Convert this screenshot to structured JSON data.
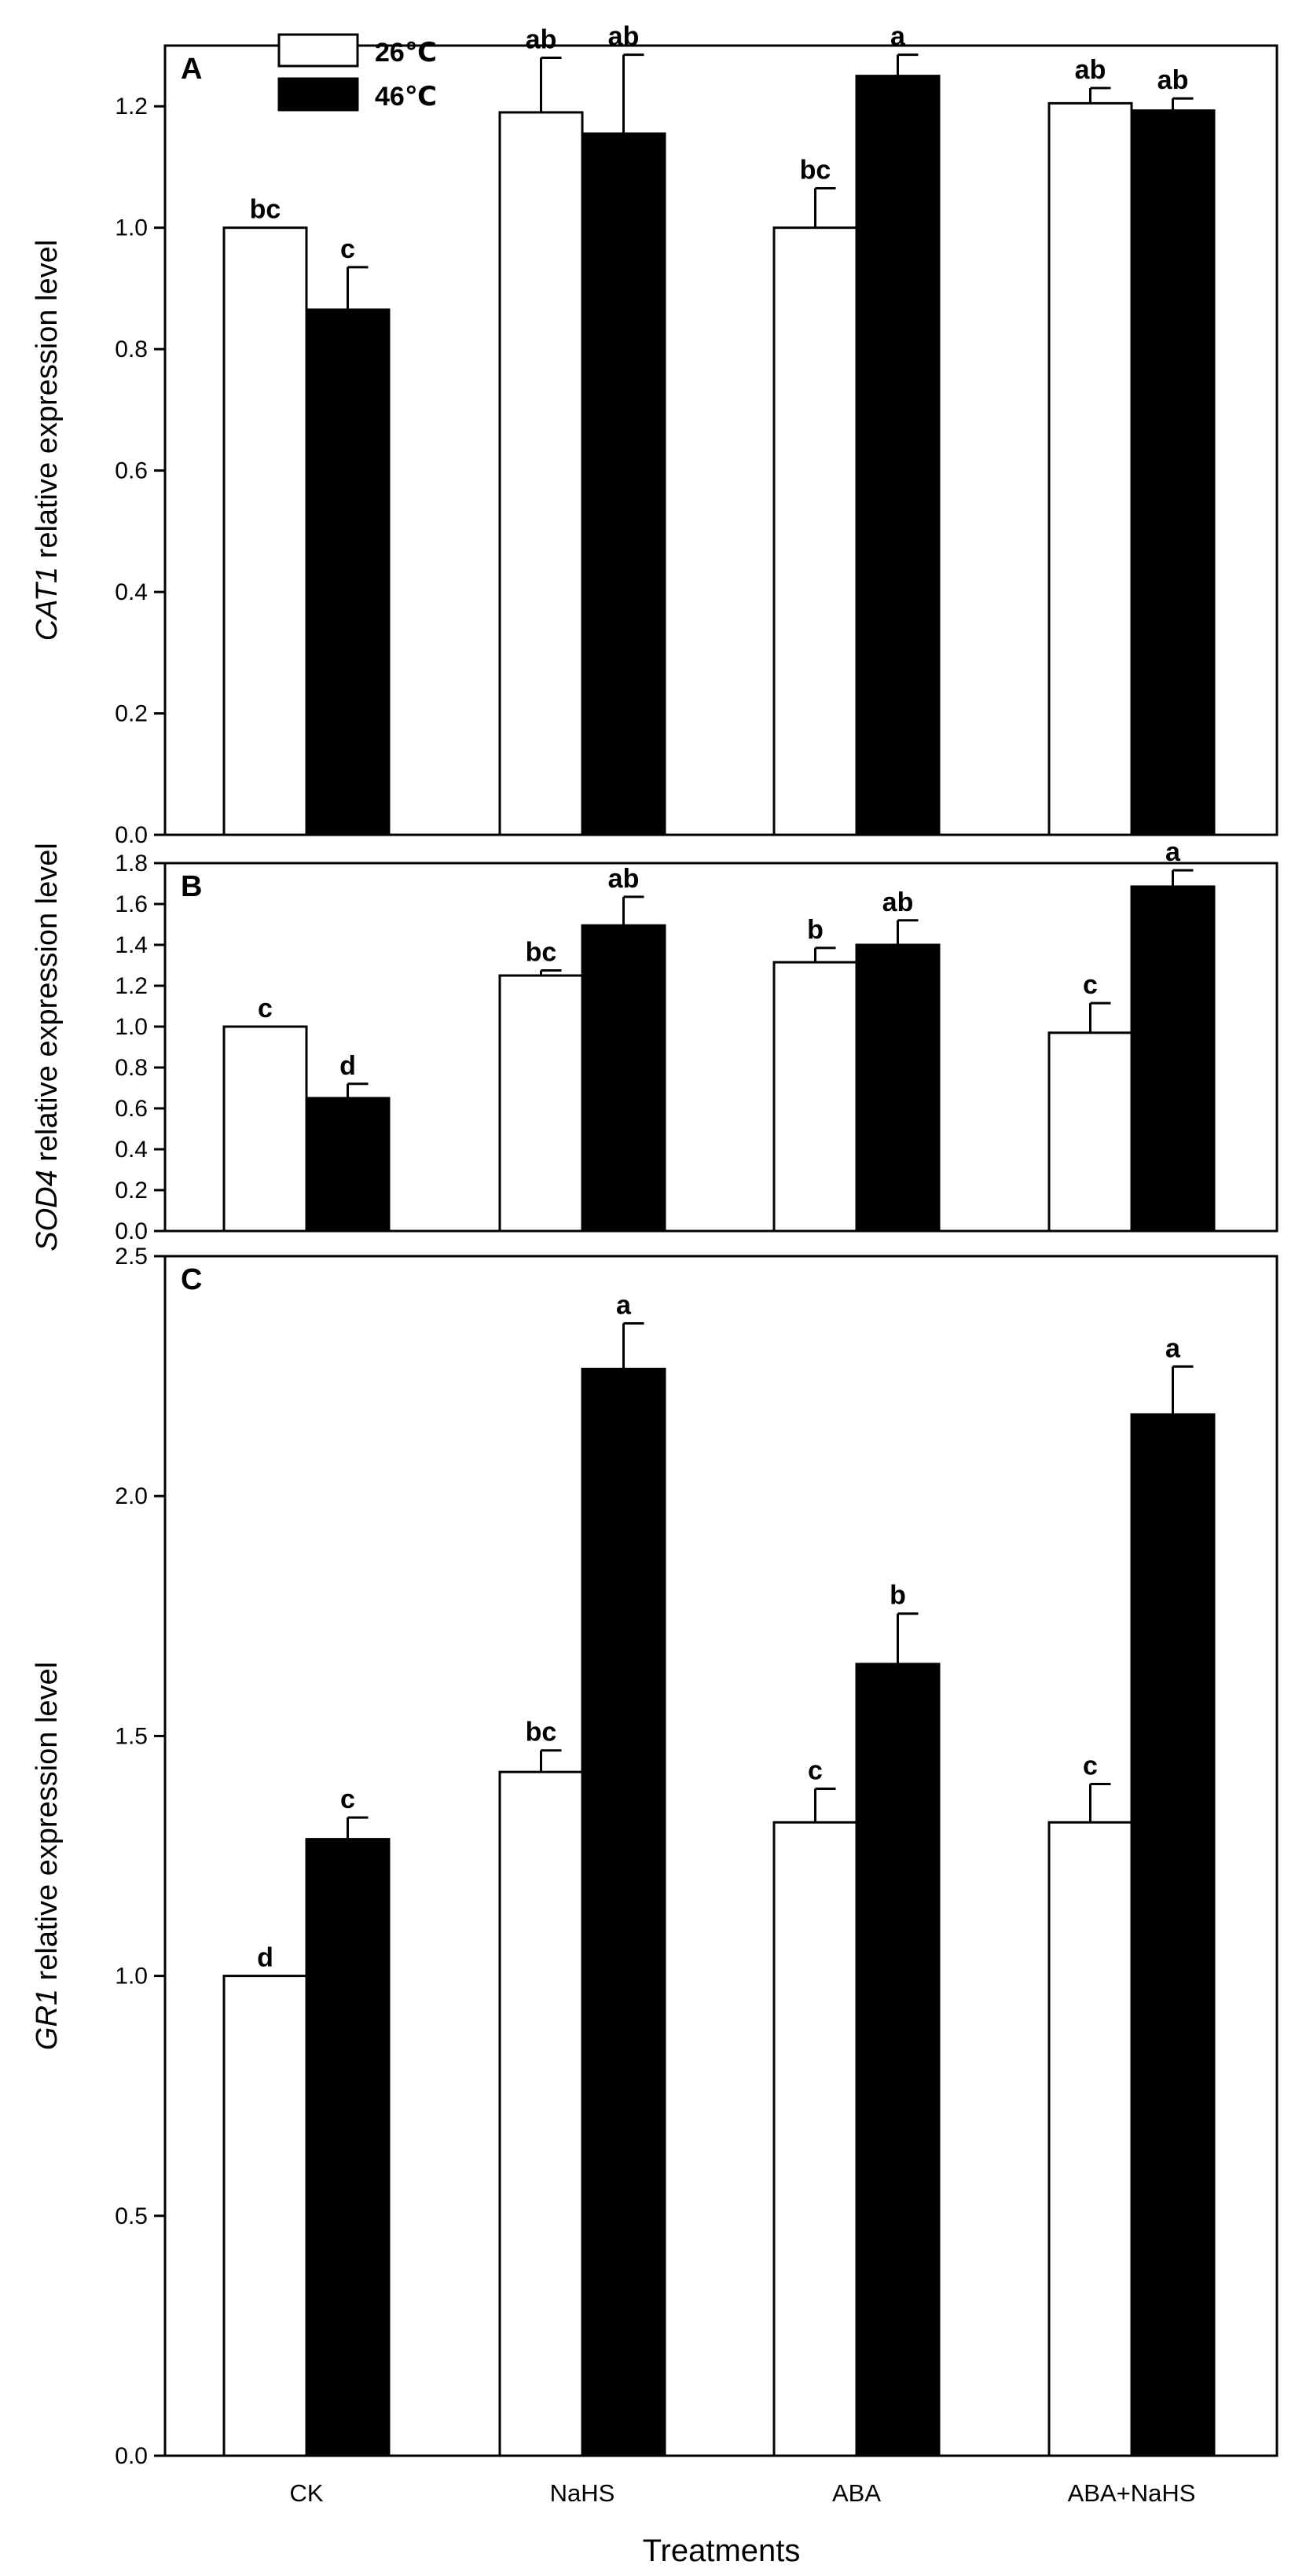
{
  "chart_data": [
    {
      "type": "bar",
      "panel": "A",
      "categories": [
        "CK",
        "NaHS",
        "ABA",
        "ABA+NaHS"
      ],
      "series": [
        {
          "name": "26℃",
          "color": "#ffffff",
          "values": [
            1.0,
            1.19,
            1.0,
            1.205
          ],
          "errors": [
            0.0,
            0.09,
            0.065,
            0.025
          ],
          "letters": [
            "bc",
            "ab",
            "bc",
            "ab"
          ]
        },
        {
          "name": "46℃",
          "color": "#000000",
          "values": [
            0.865,
            1.155,
            1.25,
            1.193
          ],
          "errors": [
            0.07,
            0.13,
            0.035,
            0.02
          ],
          "letters": [
            "c",
            "ab",
            "a",
            "ab"
          ]
        }
      ],
      "ylim": [
        0.0,
        1.3
      ],
      "yticks": [
        "0.0",
        "0.2",
        "0.4",
        "0.6",
        "0.8",
        "1.0",
        "1.2"
      ],
      "ylabel_italic": "CAT1",
      "ylabel_rest": " relative expression level"
    },
    {
      "type": "bar",
      "panel": "B",
      "categories": [
        "CK",
        "NaHS",
        "ABA",
        "ABA+NaHS"
      ],
      "series": [
        {
          "name": "26℃",
          "color": "#ffffff",
          "values": [
            1.0,
            1.25,
            1.315,
            0.97
          ],
          "errors": [
            0.0,
            0.025,
            0.07,
            0.145
          ],
          "letters": [
            "c",
            "bc",
            "b",
            "c"
          ]
        },
        {
          "name": "46℃",
          "color": "#000000",
          "values": [
            0.65,
            1.495,
            1.4,
            1.685
          ],
          "errors": [
            0.07,
            0.14,
            0.12,
            0.08
          ],
          "letters": [
            "d",
            "ab",
            "ab",
            "a"
          ]
        }
      ],
      "ylim": [
        0.0,
        1.8
      ],
      "yticks": [
        "0.0",
        "0.2",
        "0.4",
        "0.6",
        "0.8",
        "1.0",
        "1.2",
        "1.4",
        "1.6",
        "1.8"
      ],
      "ylabel_italic": "SOD4",
      "ylabel_rest": " relative expression level"
    },
    {
      "type": "bar",
      "panel": "C",
      "categories": [
        "CK",
        "NaHS",
        "ABA",
        "ABA+NaHS"
      ],
      "series": [
        {
          "name": "26℃",
          "color": "#ffffff",
          "values": [
            1.0,
            1.425,
            1.32,
            1.32
          ],
          "errors": [
            0.0,
            0.045,
            0.07,
            0.08
          ],
          "letters": [
            "d",
            "bc",
            "c",
            "c"
          ]
        },
        {
          "name": "46℃",
          "color": "#000000",
          "values": [
            1.285,
            2.265,
            1.65,
            2.17
          ],
          "errors": [
            0.045,
            0.095,
            0.105,
            0.1
          ],
          "letters": [
            "c",
            "a",
            "b",
            "a"
          ]
        }
      ],
      "ylim": [
        0.0,
        2.5
      ],
      "yticks": [
        "0.0",
        "0.5",
        "1.0",
        "1.5",
        "2.0",
        "2.5"
      ],
      "ylabel_italic": "GR1",
      "ylabel_rest": " relative expression level"
    }
  ],
  "legend": [
    {
      "label": "26℃",
      "color": "#ffffff"
    },
    {
      "label": "46℃",
      "color": "#000000"
    }
  ],
  "xlabel": "Treatments"
}
